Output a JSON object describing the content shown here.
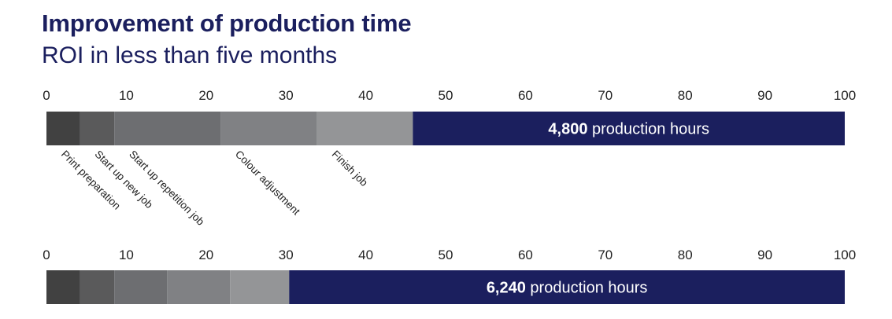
{
  "title": "Improvement of production time",
  "subtitle": "ROI in less than five months",
  "chart_data": {
    "type": "bar",
    "orientation": "horizontal-stacked",
    "xlim": [
      0,
      100
    ],
    "ticks": [
      0,
      10,
      20,
      30,
      40,
      50,
      60,
      70,
      80,
      90,
      100
    ],
    "grid": false,
    "legend": "none",
    "segment_labels": [
      "Print preparation",
      "Start up new job",
      "Start up repetition job",
      "Colour adjustment",
      "Finish job"
    ],
    "colors": [
      "#414141",
      "#5a5a5b",
      "#6d6e71",
      "#808184",
      "#949597",
      "#1b1f5e"
    ],
    "bars": [
      {
        "segments": [
          4.2,
          4.3,
          13.3,
          12.1,
          12.0
        ],
        "remainder": 54.1,
        "total_value": "4,800",
        "total_unit": "production hours"
      },
      {
        "segments": [
          4.2,
          4.3,
          6.6,
          7.9,
          7.4
        ],
        "remainder": 69.6,
        "total_value": "6,240",
        "total_unit": "production hours"
      }
    ]
  }
}
